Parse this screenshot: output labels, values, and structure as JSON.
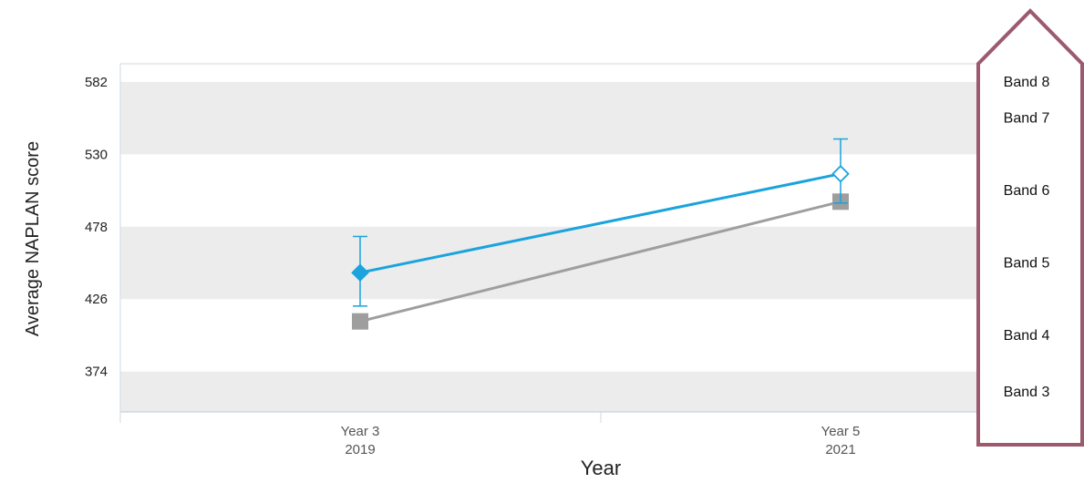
{
  "chart_data": {
    "type": "line",
    "title": "",
    "xlabel": "Year",
    "ylabel": "Average NAPLAN score",
    "ylim": [
      345,
      595
    ],
    "y_ticks": [
      374,
      426,
      478,
      530,
      582
    ],
    "categories": [
      {
        "line1": "Year 3",
        "line2": "2019"
      },
      {
        "line1": "Year 5",
        "line2": "2021"
      }
    ],
    "bands": [
      {
        "label": "Band 3",
        "from": 345,
        "to": 374,
        "shaded": true
      },
      {
        "label": "Band 4",
        "from": 374,
        "to": 426,
        "shaded": false
      },
      {
        "label": "Band 5",
        "from": 426,
        "to": 478,
        "shaded": true
      },
      {
        "label": "Band 6",
        "from": 478,
        "to": 530,
        "shaded": false
      },
      {
        "label": "Band 7",
        "from": 530,
        "to": 582,
        "shaded": true
      },
      {
        "label": "Band 8",
        "from": 582,
        "to": 595,
        "shaded": false
      }
    ],
    "series": [
      {
        "values": [
          410,
          496
        ],
        "color": "#9e9e9e",
        "marker": "square"
      },
      {
        "values": [
          445,
          516
        ],
        "error_low": [
          421,
          495
        ],
        "error_high": [
          471,
          541
        ],
        "color": "#1aa3dc",
        "marker": [
          "diamond-filled",
          "diamond-open"
        ]
      }
    ],
    "grid": false,
    "colors": {
      "band_shade": "#ececec",
      "axis": "#cfd8e3",
      "highlight_box": "#9b5a6e"
    }
  }
}
